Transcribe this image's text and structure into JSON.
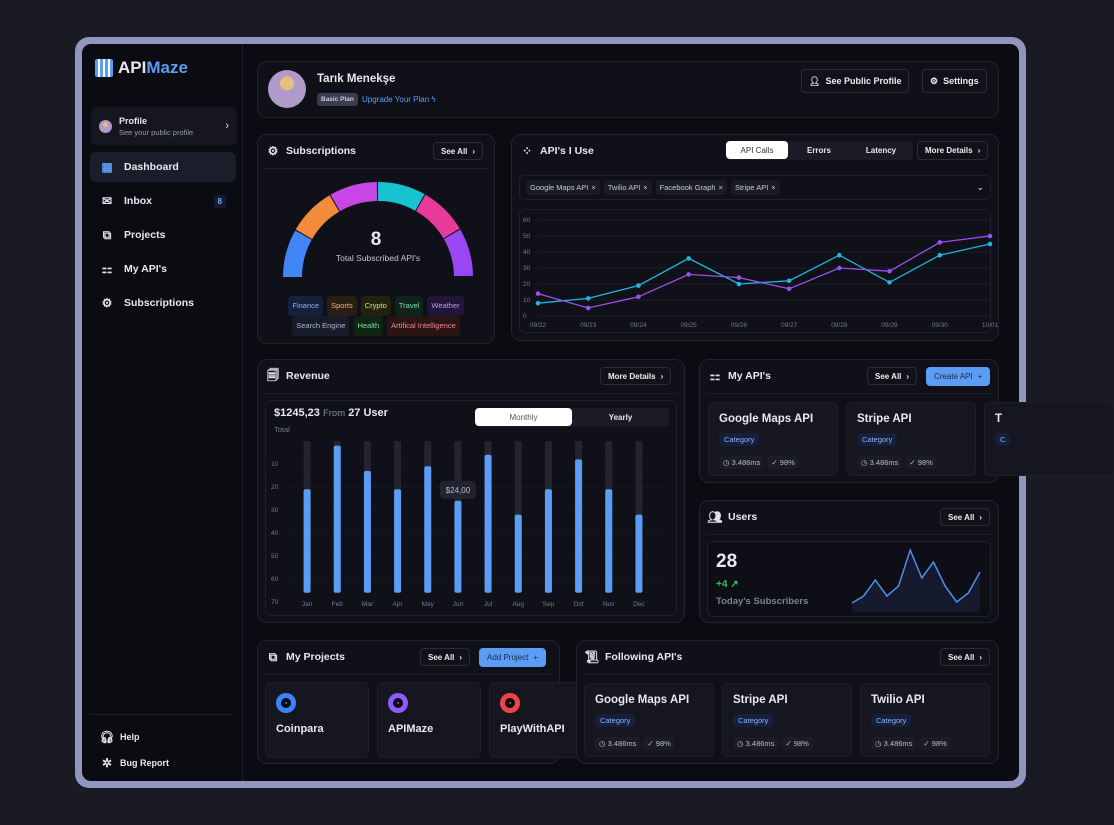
{
  "app": {
    "logo_a": "API",
    "logo_b": "Maze"
  },
  "sidebar": {
    "profile": {
      "title": "Profile",
      "subtitle": "See your public profile"
    },
    "items": [
      {
        "label": "Dashboard",
        "icon": "grid-icon",
        "active": true
      },
      {
        "label": "Inbox",
        "icon": "inbox-icon",
        "badge": "8"
      },
      {
        "label": "Projects",
        "icon": "projects-icon"
      },
      {
        "label": "My API's",
        "icon": "api-icon"
      },
      {
        "label": "Subscriptions",
        "icon": "gear-icon"
      }
    ],
    "footer": [
      {
        "label": "Help",
        "icon": "headset-icon"
      },
      {
        "label": "Bug Report",
        "icon": "bug-icon"
      }
    ]
  },
  "header": {
    "name": "Tarık Menekşe",
    "plan": "Basic Plan",
    "upgrade": "Upgrade Your Plan",
    "public_profile": "See Public Profile",
    "settings": "Settings"
  },
  "subscriptions": {
    "title": "Subscriptions",
    "see_all": "See All",
    "total": "8",
    "total_label": "Total Subscribed API's",
    "segment_colors": [
      "#4285f4",
      "#f28b3c",
      "#c846e8",
      "#17c3cf",
      "#e83a9a",
      "#9847f2"
    ],
    "tags": [
      {
        "label": "Finance",
        "color": "#8fb0f0",
        "bg": "#15203d"
      },
      {
        "label": "Sports",
        "color": "#f0b27a",
        "bg": "#2a1d14"
      },
      {
        "label": "Crypto",
        "color": "#d8e07a",
        "bg": "#22230f"
      },
      {
        "label": "Travel",
        "color": "#7ae0b8",
        "bg": "#10241d"
      },
      {
        "label": "Weather",
        "color": "#c09af5",
        "bg": "#22153a"
      },
      {
        "label": "Search Engine",
        "color": "#aab4d0",
        "bg": "#181c28"
      },
      {
        "label": "Health",
        "color": "#7ae09a",
        "bg": "#102416"
      },
      {
        "label": "Artifical Intelligence",
        "color": "#f08a8a",
        "bg": "#2a1414"
      }
    ]
  },
  "apis_use": {
    "title": "API's I Use",
    "tabs": [
      "API Calls",
      "Errors",
      "Latency"
    ],
    "active_tab": "API Calls",
    "more": "More Details",
    "chips": [
      "Google Maps API",
      "Twilio API",
      "Facebook Graph",
      "Stripe API"
    ],
    "chart_data": {
      "type": "line",
      "x": [
        "09/22",
        "09/23",
        "09/24",
        "09/25",
        "09/26",
        "09/27",
        "09/28",
        "09/29",
        "09/30",
        "10/01"
      ],
      "ylim": [
        0,
        60
      ],
      "yticks": [
        0,
        10,
        20,
        30,
        40,
        50,
        60
      ],
      "grid": true,
      "series": [
        {
          "color": "#1fb6dc",
          "values": [
            8,
            11,
            19,
            36,
            20,
            22,
            38,
            21,
            38,
            45
          ]
        },
        {
          "color": "#9b4ff0",
          "values": [
            14,
            5,
            12,
            26,
            24,
            17,
            30,
            28,
            46,
            50
          ]
        }
      ]
    }
  },
  "revenue": {
    "title": "Revenue",
    "more": "More Details",
    "total": "$1245,23",
    "from": "From",
    "users": "27 User",
    "total_label": "Total",
    "toggle": [
      "Monthly",
      "Yearly"
    ],
    "active": "Monthly",
    "tooltip": "$24,00",
    "chart_data": {
      "type": "bar",
      "categories": [
        "Jan",
        "Feb",
        "Mar",
        "Apr",
        "May",
        "Jun",
        "Jul",
        "Aug",
        "Sep",
        "Oct",
        "Nov",
        "Dec"
      ],
      "yticks": [
        10,
        20,
        30,
        40,
        50,
        60,
        70
      ],
      "ylim": [
        0,
        70
      ],
      "inverted_axis": true,
      "values": [
        21,
        2,
        13,
        21,
        11,
        26,
        6,
        32,
        21,
        8,
        21,
        32
      ],
      "color": "#5b9cf5"
    }
  },
  "my_apis": {
    "title": "My API's",
    "see_all": "See All",
    "create": "Create API",
    "cards": [
      {
        "name": "Google Maps API",
        "category": "Category",
        "latency": "3.486ms",
        "uptime": "98%"
      },
      {
        "name": "Stripe API",
        "category": "Category",
        "latency": "3.486ms",
        "uptime": "98%"
      },
      {
        "name": "T",
        "category": "C",
        "latency": "",
        "uptime": ""
      }
    ]
  },
  "users": {
    "title": "Users",
    "see_all": "See All",
    "count": "28",
    "delta": "+4",
    "label": "Today's Subscribers",
    "color": "#22c55e"
  },
  "projects": {
    "title": "My Projects",
    "see_all": "See All",
    "add": "Add Project",
    "items": [
      {
        "name": "Coinpara",
        "color": "#3b82f6"
      },
      {
        "name": "APIMaze",
        "color": "#8b5cf6"
      },
      {
        "name": "PlayWithAPI",
        "color": "#ef4444"
      }
    ]
  },
  "following": {
    "title": "Following API's",
    "see_all": "See All",
    "cards": [
      {
        "name": "Google Maps API",
        "category": "Category",
        "latency": "3.486ms",
        "uptime": "98%"
      },
      {
        "name": "Stripe API",
        "category": "Category",
        "latency": "3.486ms",
        "uptime": "98%"
      },
      {
        "name": "Twilio API",
        "category": "Category",
        "latency": "3.486ms",
        "uptime": "98%"
      }
    ]
  }
}
